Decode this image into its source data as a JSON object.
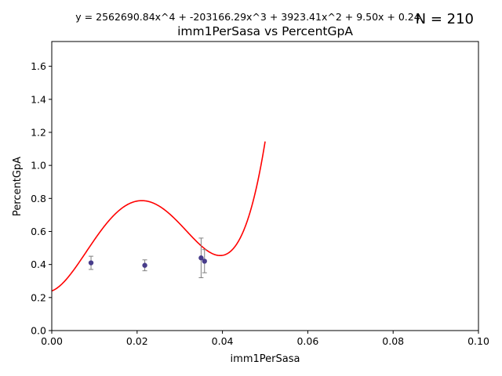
{
  "chart_data": {
    "type": "scatter",
    "title": "imm1PerSasa vs PercentGpA",
    "equation": "y = 2562690.84x^4 + -203166.29x^3 + 3923.41x^2 + 9.50x + 0.24",
    "n_label": "N = 210",
    "xlabel": "imm1PerSasa",
    "ylabel": "PercentGpA",
    "xlim": [
      0,
      0.1
    ],
    "ylim": [
      0,
      1.75
    ],
    "xticks": [
      "0.00",
      "0.02",
      "0.04",
      "0.06",
      "0.08",
      "0.10"
    ],
    "yticks": [
      "0.0",
      "0.2",
      "0.4",
      "0.6",
      "0.8",
      "1.0",
      "1.2",
      "1.4",
      "1.6"
    ],
    "grid": false,
    "points": [
      {
        "x": 0.0092,
        "y": 0.41,
        "err": 0.04
      },
      {
        "x": 0.0218,
        "y": 0.395,
        "err": 0.033
      },
      {
        "x": 0.035,
        "y": 0.44,
        "err": 0.12
      },
      {
        "x": 0.0358,
        "y": 0.42,
        "err": 0.07
      }
    ],
    "point_color": "#483d8b",
    "errorbar_color": "#808080",
    "fit_color": "#ff0000",
    "fit_coefficients": [
      0.24,
      9.5,
      3923.41,
      -203166.29,
      2562690.84
    ],
    "fit_x_range": [
      0.0,
      0.05
    ]
  }
}
